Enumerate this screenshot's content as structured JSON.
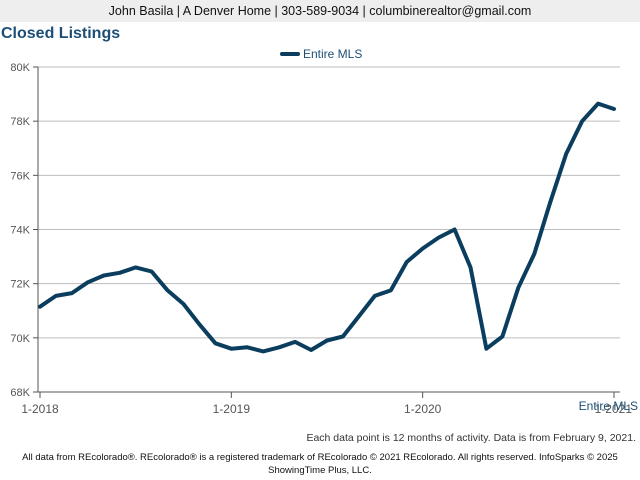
{
  "header": {
    "contact_line": "John Basila | A Denver Home | 303-589-9034 | columbinerealtor@gmail.com"
  },
  "colors": {
    "series": "#0b3d5e",
    "grid": "#bdbdbd",
    "title": "#1d4f76",
    "axis_text": "#555555"
  },
  "chart_data": {
    "type": "line",
    "title": "Closed Listings",
    "xlabel": "",
    "ylabel": "",
    "ylim": [
      68000,
      80000
    ],
    "y_ticks": [
      68000,
      70000,
      72000,
      74000,
      76000,
      78000,
      80000
    ],
    "y_tick_labels": [
      "68K",
      "70K",
      "72K",
      "74K",
      "76K",
      "78K",
      "80K"
    ],
    "x_tick_labels": [
      "1-2018",
      "1-2019",
      "1-2020",
      "1-2021"
    ],
    "x_tick_dates": [
      "2018-01",
      "2019-01",
      "2020-01",
      "2021-01"
    ],
    "legend": {
      "placement": "top-center"
    },
    "grid": true,
    "series": [
      {
        "name": "Entire MLS",
        "x": [
          "2018-01",
          "2018-02",
          "2018-03",
          "2018-04",
          "2018-05",
          "2018-06",
          "2018-07",
          "2018-08",
          "2018-09",
          "2018-10",
          "2018-11",
          "2018-12",
          "2019-01",
          "2019-02",
          "2019-03",
          "2019-04",
          "2019-05",
          "2019-06",
          "2019-07",
          "2019-08",
          "2019-09",
          "2019-10",
          "2019-11",
          "2019-12",
          "2020-01",
          "2020-02",
          "2020-03",
          "2020-04",
          "2020-05",
          "2020-06",
          "2020-07",
          "2020-08",
          "2020-09",
          "2020-10",
          "2020-11",
          "2020-12",
          "2021-01"
        ],
        "values": [
          71150,
          71550,
          71650,
          72050,
          72300,
          72400,
          72600,
          72450,
          71750,
          71250,
          70500,
          69800,
          69600,
          69650,
          69500,
          69650,
          69850,
          69550,
          69900,
          70050,
          70800,
          71550,
          71750,
          72800,
          73300,
          73700,
          74000,
          72600,
          69600,
          70050,
          71850,
          73100,
          75000,
          76800,
          78000,
          78650,
          78450
        ]
      }
    ],
    "end_label": "Entire MLS"
  },
  "footnote": "Each data point is 12 months of activity. Data is from February 9, 2021.",
  "footer": {
    "line1": "All data from REcolorado®. REcolorado® is a registered trademark of REcolorado © 2021 REcolorado. All rights reserved. InfoSparks © 2025",
    "line2": "ShowingTime Plus, LLC."
  }
}
